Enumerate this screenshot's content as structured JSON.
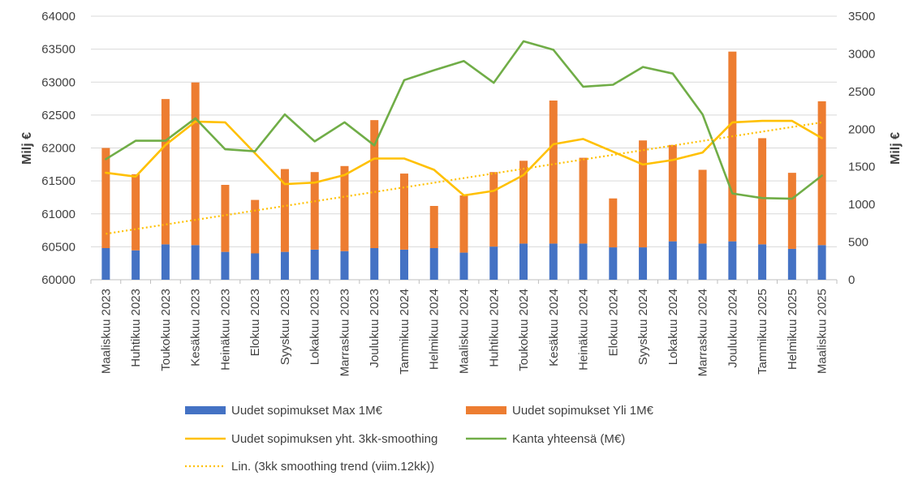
{
  "chart_data": {
    "type": "bar",
    "categories": [
      "Maaliskuu 2023",
      "Huhtikuu 2023",
      "Toukokuu 2023",
      "Kesäkuu 2023",
      "Heinäkuu 2023",
      "Elokuu 2023",
      "Syyskuu 2023",
      "Lokakuu 2023",
      "Marraskuu 2023",
      "Joulukuu 2023",
      "Tammikuu 2024",
      "Helmikuu 2024",
      "Maaliskuu 2024",
      "Huhtikuu 2024",
      "Toukokuu 2024",
      "Kesäkuu 2024",
      "Heinäkuu 2024",
      "Elokuu 2024",
      "Syyskuu 2024",
      "Lokakuu 2024",
      "Marraskuu 2024",
      "Joulukuu 2024",
      "Tammikuu 2025",
      "Helmikuu 2025",
      "Maaliskuu 2025"
    ],
    "left_axis": {
      "title": "Milj €",
      "min": 60000,
      "max": 64000,
      "ticks": [
        "60000",
        "60500",
        "61000",
        "61500",
        "62000",
        "62500",
        "63000",
        "63500",
        "64000"
      ]
    },
    "right_axis": {
      "title": "Milj €",
      "min": 0,
      "max": 3500,
      "ticks": [
        "0",
        "500",
        "1000",
        "1500",
        "2000",
        "2500",
        "3000",
        "3500"
      ]
    },
    "grid": true,
    "legend_position": "bottom",
    "series": [
      {
        "name": "Uudet sopimukset Max 1M€",
        "kind": "bar-stacked",
        "axis": "right",
        "color": "#4472C4",
        "values": [
          420,
          390,
          470,
          460,
          370,
          350,
          370,
          400,
          380,
          420,
          400,
          420,
          360,
          440,
          480,
          480,
          480,
          430,
          430,
          510,
          480,
          510,
          470,
          410,
          460
        ]
      },
      {
        "name": "Uudet sopimukset Yli 1M€",
        "kind": "bar-stacked",
        "axis": "right",
        "color": "#ED7D31",
        "values": [
          1330,
          1010,
          1930,
          2160,
          890,
          710,
          1100,
          1030,
          1130,
          1700,
          1010,
          560,
          760,
          990,
          1100,
          1900,
          1140,
          650,
          1420,
          1280,
          980,
          2520,
          1410,
          1010,
          1910
        ]
      },
      {
        "name": "Uudet sopimuksen yht. 3kk-smoothing",
        "kind": "line",
        "axis": "right",
        "color": "#FFC000",
        "values": [
          1420,
          1370,
          1790,
          2100,
          2090,
          1680,
          1270,
          1290,
          1390,
          1610,
          1610,
          1460,
          1120,
          1180,
          1390,
          1800,
          1870,
          1700,
          1530,
          1590,
          1690,
          2090,
          2110,
          2110,
          1880
        ]
      },
      {
        "name": "Kanta yhteensä (M€)",
        "kind": "line",
        "axis": "left",
        "color": "#70AD47",
        "values": [
          61830,
          62110,
          62110,
          62450,
          61980,
          61950,
          62510,
          62100,
          62390,
          62040,
          63030,
          63180,
          63320,
          62990,
          63620,
          63490,
          62930,
          62960,
          63230,
          63130,
          62510,
          61310,
          61240,
          61230,
          61580
        ]
      },
      {
        "name": "Lin. (3kk smoothing trend (viim.12kk))",
        "kind": "trend-dotted",
        "axis": "right",
        "color": "#FFC000",
        "start": 610,
        "end": 2090
      }
    ]
  }
}
